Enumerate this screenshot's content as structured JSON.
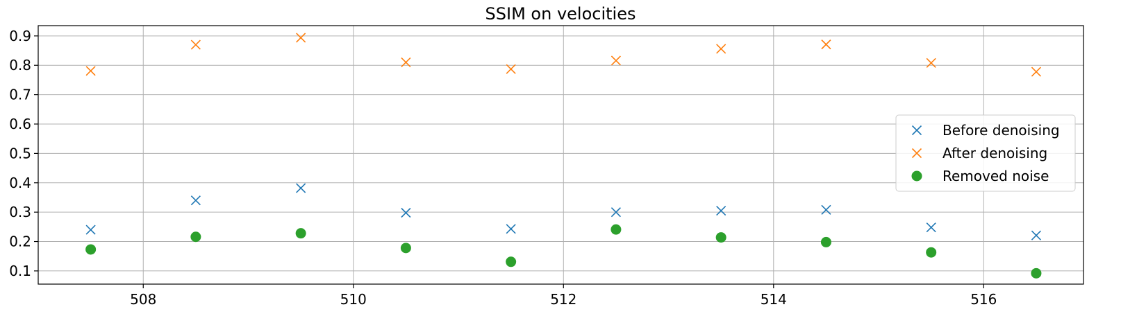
{
  "chart_data": {
    "type": "scatter",
    "title": "SSIM on velocities",
    "xlabel": "",
    "ylabel": "",
    "xlim": [
      507.0,
      516.95
    ],
    "ylim": [
      0.055,
      0.935
    ],
    "xticks": [
      508,
      510,
      512,
      514,
      516
    ],
    "yticks": [
      0.1,
      0.2,
      0.3,
      0.4,
      0.5,
      0.6,
      0.7,
      0.8,
      0.9
    ],
    "xtick_labels": [
      "508",
      "510",
      "512",
      "514",
      "516"
    ],
    "ytick_labels": [
      "0.1",
      "0.2",
      "0.3",
      "0.4",
      "0.5",
      "0.6",
      "0.7",
      "0.8",
      "0.9"
    ],
    "grid": true,
    "legend_position": "center-right",
    "x": [
      507.5,
      508.5,
      509.5,
      510.5,
      511.5,
      512.5,
      513.5,
      514.5,
      515.5,
      516.5
    ],
    "series": [
      {
        "name": "Before denoising",
        "marker": "x",
        "color": "#1f77b4",
        "values": [
          0.24,
          0.34,
          0.382,
          0.298,
          0.243,
          0.3,
          0.305,
          0.308,
          0.248,
          0.221
        ]
      },
      {
        "name": "After denoising",
        "marker": "x",
        "color": "#ff7f0e",
        "values": [
          0.781,
          0.87,
          0.894,
          0.81,
          0.787,
          0.816,
          0.856,
          0.871,
          0.808,
          0.778
        ]
      },
      {
        "name": "Removed noise",
        "marker": "o",
        "color": "#2ca02c",
        "values": [
          0.173,
          0.216,
          0.228,
          0.178,
          0.131,
          0.241,
          0.214,
          0.198,
          0.163,
          0.092
        ]
      }
    ]
  }
}
